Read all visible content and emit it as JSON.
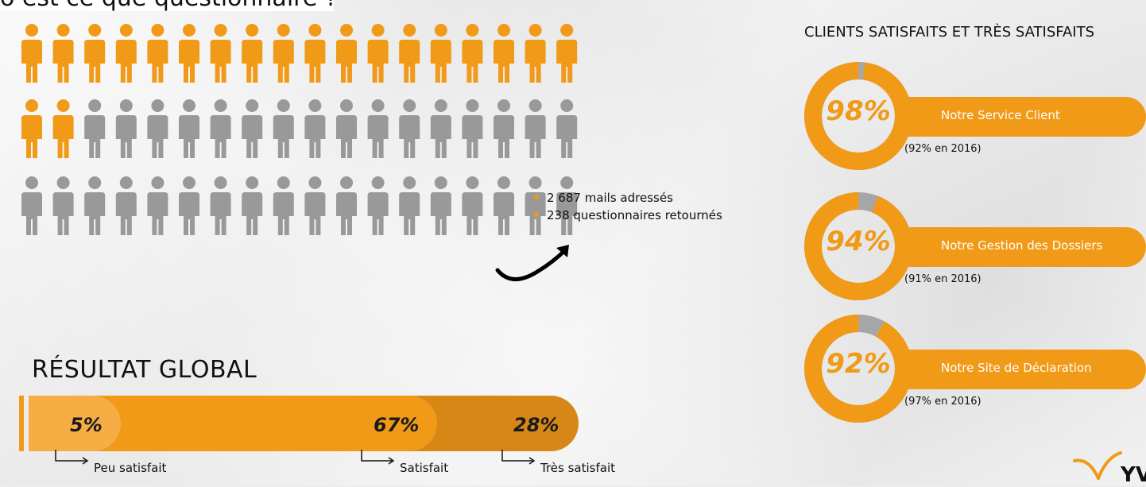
{
  "header": {
    "cropped_question": "o est ce que questionnaire ?"
  },
  "infographic": {
    "people_total": 54,
    "people_highlighted": 20,
    "highlight_color": "#f09a17",
    "base_color": "#999999",
    "stats": [
      "2 687 mails adressés",
      "238 questionnaires retournés"
    ]
  },
  "global_result": {
    "title": "RÉSULTAT GLOBAL",
    "segments": [
      {
        "value": "5%",
        "label": "Peu satisfait",
        "share": 0.05
      },
      {
        "value": "67%",
        "label": "Satisfait",
        "share": 0.67
      },
      {
        "value": "28%",
        "label": "Très satisfait",
        "share": 0.28
      }
    ]
  },
  "satisfaction": {
    "title": "CLIENTS SATISFAITS ET TRÈS SATISFAITS",
    "items": [
      {
        "value": "98%",
        "fraction": 0.98,
        "label": "Notre Service Client",
        "previous": "(92% en 2016)"
      },
      {
        "value": "94%",
        "fraction": 0.94,
        "label": "Notre Gestion des Dossiers",
        "previous": "(91% en 2016)"
      },
      {
        "value": "92%",
        "fraction": 0.92,
        "label": "Notre Site de Déclaration",
        "previous": "(97% en 2016)"
      }
    ]
  },
  "logo": {
    "text": "YVI"
  },
  "colors": {
    "accent": "#f09a17",
    "accent_dark": "#d78716",
    "accent_light": "#f5ad44",
    "ring_remainder": "#a6a6a6"
  }
}
